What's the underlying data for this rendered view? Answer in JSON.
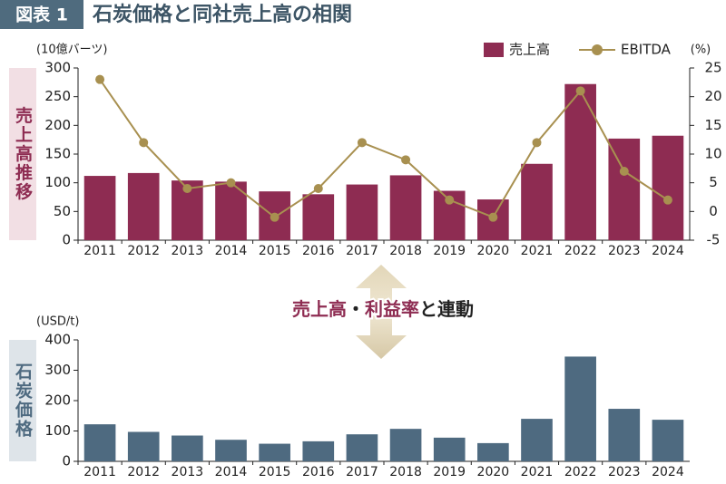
{
  "header": {
    "label": "図表 1",
    "title": "石炭価格と同社売上高の相関"
  },
  "annotation": [
    "売上高",
    "・",
    "利益率",
    "と連動"
  ],
  "chart_data": [
    {
      "type": "bar",
      "side_label": "売上高推移",
      "ylabel": "(10億バーツ)",
      "y2label": "(%)",
      "categories": [
        "2011",
        "2012",
        "2013",
        "2014",
        "2015",
        "2016",
        "2017",
        "2018",
        "2019",
        "2020",
        "2021",
        "2022",
        "2023",
        "2024"
      ],
      "series": [
        {
          "name": "売上高",
          "color": "#8e2c52",
          "values": [
            112,
            117,
            104,
            102,
            85,
            80,
            97,
            113,
            86,
            71,
            133,
            272,
            177,
            182
          ]
        },
        {
          "name": "EBITDA",
          "type": "line",
          "axis": "y2",
          "color": "#a89050",
          "values": [
            23,
            12,
            4,
            5,
            -1,
            4,
            12,
            9,
            2,
            -1,
            12,
            21,
            7,
            2
          ]
        }
      ],
      "ylim": [
        0,
        300
      ],
      "yticks": [
        0,
        50,
        100,
        150,
        200,
        250,
        300
      ],
      "y2lim": [
        -5,
        25
      ],
      "y2ticks": [
        -5,
        0,
        5,
        10,
        15,
        20,
        25
      ],
      "legend": "top-right"
    },
    {
      "type": "bar",
      "side_label": "石炭価格",
      "ylabel": "(USD/t)",
      "categories": [
        "2011",
        "2012",
        "2013",
        "2014",
        "2015",
        "2016",
        "2017",
        "2018",
        "2019",
        "2020",
        "2021",
        "2022",
        "2023",
        "2024"
      ],
      "values": [
        122,
        97,
        85,
        71,
        58,
        66,
        89,
        107,
        78,
        60,
        140,
        345,
        173,
        137
      ],
      "color": "#4e6a80",
      "ylim": [
        0,
        400
      ],
      "yticks": [
        0,
        100,
        200,
        300,
        400
      ]
    }
  ]
}
